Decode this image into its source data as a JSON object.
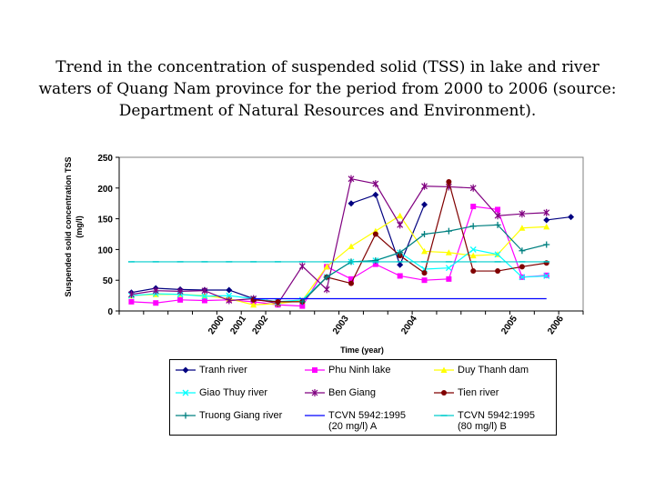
{
  "title": "Trend in the concentration of suspended solid (TSS) in lake and river waters of Quang Nam province for the period from 2000 to 2006 (source: Department of Natural Resources and Environment).",
  "chart_data": {
    "type": "line",
    "title": "Trend in the concentration of suspended solid (TSS) in lake and river waters of Quang Nam province for the period from 2000 to 2006 (source: Department of Natural Resources and Environment).",
    "xlabel": "Time (year)",
    "ylabel": "Suspended solid concentration TSS (mg/l)",
    "ylim": [
      0,
      250
    ],
    "yticks": [
      0,
      50,
      100,
      150,
      200,
      250
    ],
    "x_tick_labels": [
      {
        "label": "2000",
        "x": 4.3
      },
      {
        "label": "2001",
        "x": 5.2
      },
      {
        "label": "2002",
        "x": 6.1
      },
      {
        "label": "2003",
        "x": 9.4
      },
      {
        "label": "2004",
        "x": 12.2
      },
      {
        "label": "2005",
        "x": 16.3
      },
      {
        "label": "2006",
        "x": 18.2
      }
    ],
    "x": [
      0.5,
      1.5,
      2.5,
      3.5,
      4.5,
      5.5,
      6.5,
      7.5,
      8.5,
      9.5,
      10.5,
      11.5,
      12.5,
      13.5,
      14.5,
      15.5,
      16.5,
      17.5,
      18.5
    ],
    "grid": false,
    "legend_position": "bottom",
    "series": [
      {
        "name": "Tranh river",
        "color": "#000080",
        "marker": "diamond",
        "values": [
          30,
          37,
          35,
          34,
          34,
          20,
          15,
          15,
          null,
          175,
          189,
          75,
          173,
          null,
          null,
          null,
          null,
          148,
          153
        ]
      },
      {
        "name": "Phu Ninh lake",
        "color": "#ff00ff",
        "marker": "square",
        "values": [
          15,
          13,
          18,
          17,
          18,
          15,
          10,
          8,
          72,
          52,
          76,
          57,
          50,
          52,
          170,
          165,
          55,
          58,
          null
        ]
      },
      {
        "name": "Duy Thanh dam",
        "color": "#ffff00",
        "marker": "triangle",
        "values": [
          25,
          27,
          27,
          25,
          20,
          10,
          12,
          17,
          72,
          105,
          130,
          155,
          97,
          95,
          90,
          92,
          135,
          137,
          null
        ]
      },
      {
        "name": "Giao Thuy river",
        "color": "#00ffff",
        "marker": "x",
        "values": [
          25,
          28,
          27,
          24,
          25,
          20,
          15,
          18,
          55,
          80,
          82,
          95,
          68,
          70,
          100,
          92,
          55,
          57,
          null
        ]
      },
      {
        "name": "Ben Giang",
        "color": "#800080",
        "marker": "star",
        "values": [
          27,
          33,
          32,
          33,
          17,
          20,
          12,
          73,
          35,
          215,
          207,
          140,
          203,
          202,
          200,
          155,
          158,
          160,
          null
        ]
      },
      {
        "name": "Tien river",
        "color": "#800000",
        "marker": "circle",
        "values": [
          null,
          null,
          null,
          null,
          null,
          18,
          15,
          15,
          55,
          45,
          125,
          90,
          62,
          210,
          65,
          65,
          72,
          78,
          null
        ]
      },
      {
        "name": "Truong Giang river",
        "color": "#008080",
        "marker": "plus",
        "values": [
          null,
          null,
          null,
          null,
          null,
          null,
          null,
          15,
          55,
          80,
          82,
          95,
          125,
          130,
          138,
          140,
          98,
          108,
          null
        ]
      },
      {
        "name": "TCVN 5942:1995 (20 mg/l) A",
        "color": "#0000ff",
        "marker": "none",
        "values": [
          null,
          null,
          null,
          null,
          null,
          20,
          20,
          20,
          20,
          20,
          20,
          20,
          20,
          20,
          20,
          20,
          20,
          20,
          null
        ]
      },
      {
        "name": "TCVN 5942:1995 (80 mg/l) B",
        "color": "#00cccc",
        "marker": "dash",
        "values": [
          80,
          80,
          80,
          80,
          80,
          80,
          80,
          80,
          80,
          80,
          80,
          80,
          80,
          80,
          80,
          80,
          80,
          80,
          null
        ]
      }
    ]
  }
}
